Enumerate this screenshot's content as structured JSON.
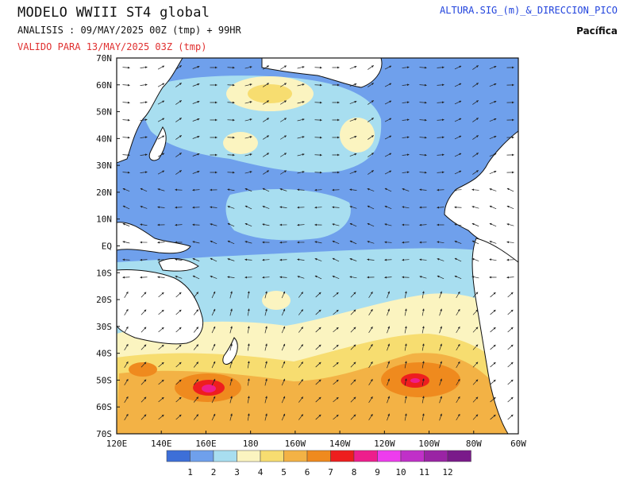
{
  "header": {
    "title": "MODELO WWIII ST4 global",
    "analysis": "ANALISIS : 09/MAY/2025 00Z  (tmp) + 99HR",
    "valid": "VALIDO PARA  13/MAY/2025 03Z  (tmp)",
    "variable": "ALTURA.SIG_(m)_&_DIRECCION_PICO",
    "region": "Pacífica"
  },
  "map": {
    "lat_labels": [
      "70N",
      "60N",
      "50N",
      "40N",
      "30N",
      "20N",
      "10N",
      "EQ",
      "10S",
      "20S",
      "30S",
      "40S",
      "50S",
      "60S",
      "70S"
    ],
    "lon_labels": [
      "120E",
      "140E",
      "160E",
      "180",
      "160W",
      "140W",
      "120W",
      "100W",
      "80W",
      "60W"
    ]
  },
  "legend": {
    "labels": [
      "1",
      "2",
      "3",
      "4",
      "5",
      "6",
      "7",
      "8",
      "9",
      "10",
      "11",
      "12"
    ],
    "colors": [
      "#3d6fd8",
      "#6fa0ec",
      "#a8def0",
      "#fbf4c0",
      "#f7dd70",
      "#f3b245",
      "#ef8a1e",
      "#ee1e1e",
      "#ee1e8c",
      "#ee3cee",
      "#c030c8",
      "#9a24a4",
      "#7a1a8a"
    ]
  }
}
